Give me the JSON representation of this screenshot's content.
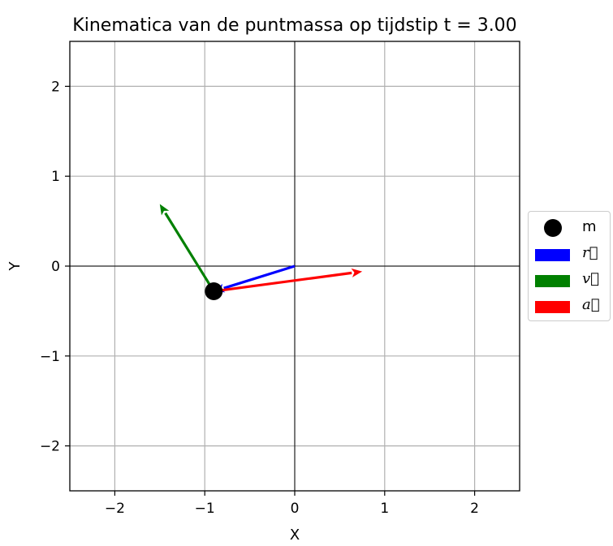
{
  "chart_data": {
    "type": "quiver",
    "title": "Kinematica van de puntmassa op tijdstip t = 3.00",
    "xlabel": "X",
    "ylabel": "Y",
    "xlim": [
      -2.5,
      2.5
    ],
    "ylim": [
      -2.5,
      2.5
    ],
    "xticks": [
      -2,
      -1,
      0,
      1,
      2
    ],
    "yticks": [
      -2,
      -1,
      0,
      1,
      2
    ],
    "xtick_labels": [
      "−2",
      "−1",
      "0",
      "1",
      "2"
    ],
    "ytick_labels": [
      "−2",
      "−1",
      "0",
      "1",
      "2"
    ],
    "grid": true,
    "axes_lines": true,
    "point": {
      "name": "m",
      "x": -0.9,
      "y": -0.28,
      "color": "#000000"
    },
    "vectors": [
      {
        "name": "r",
        "label": "r⃗",
        "x0": 0,
        "y0": 0,
        "dx": -0.9,
        "dy": -0.28,
        "color": "#0000ff"
      },
      {
        "name": "v",
        "label": "v⃗",
        "x0": -0.9,
        "y0": -0.28,
        "dx": -0.6,
        "dy": 0.97,
        "color": "#008000"
      },
      {
        "name": "a",
        "label": "a⃗",
        "x0": -0.9,
        "y0": -0.28,
        "dx": 1.65,
        "dy": 0.22,
        "color": "#ff0000"
      }
    ],
    "legend": {
      "placement": "center-right-outside",
      "entries": [
        {
          "label": "m",
          "kind": "marker",
          "color": "#000000"
        },
        {
          "label": "r⃗",
          "kind": "patch",
          "color": "#0000ff"
        },
        {
          "label": "v⃗",
          "kind": "patch",
          "color": "#008000"
        },
        {
          "label": "a⃗",
          "kind": "patch",
          "color": "#ff0000"
        }
      ]
    }
  }
}
